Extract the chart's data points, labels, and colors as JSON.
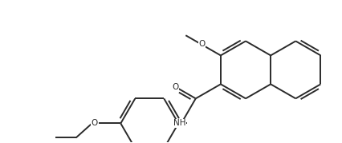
{
  "bg_color": "#ffffff",
  "line_color": "#2a2a2a",
  "line_width": 1.4,
  "font_size": 7.5,
  "figsize": [
    4.26,
    1.79
  ],
  "dpi": 100,
  "xlim": [
    0,
    10
  ],
  "ylim": [
    0,
    4.2
  ]
}
